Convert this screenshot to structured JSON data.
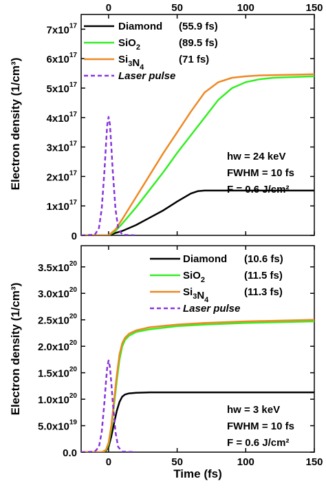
{
  "chart_data": [
    {
      "type": "line",
      "xlabel": "",
      "ylabel": "Electron density (1/cm³)",
      "xlim": [
        -20,
        150
      ],
      "ylim": [
        0,
        7.5e+17
      ],
      "x_ticks": [
        {
          "value": 0,
          "label": "0"
        },
        {
          "value": 50,
          "label": "50"
        },
        {
          "value": 100,
          "label": "100"
        },
        {
          "value": 150,
          "label": "150"
        }
      ],
      "x_ticks_position": "top",
      "y_ticks": [
        {
          "value": 0,
          "mantissa": "0",
          "exp": ""
        },
        {
          "value": 1e+17,
          "mantissa": "1x10",
          "exp": "17"
        },
        {
          "value": 2e+17,
          "mantissa": "2x10",
          "exp": "17"
        },
        {
          "value": 3e+17,
          "mantissa": "3x10",
          "exp": "17"
        },
        {
          "value": 4e+17,
          "mantissa": "4x10",
          "exp": "17"
        },
        {
          "value": 5e+17,
          "mantissa": "5x10",
          "exp": "17"
        },
        {
          "value": 6e+17,
          "mantissa": "6x10",
          "exp": "17"
        },
        {
          "value": 7e+17,
          "mantissa": "7x10",
          "exp": "17"
        }
      ],
      "legend": "top-left",
      "grid": false,
      "series": [
        {
          "name": "Diamond",
          "legend_time": "(55.9 fs)",
          "color": "#000000",
          "dash": false,
          "x": [
            -20,
            -5,
            0,
            5,
            10,
            20,
            30,
            40,
            50,
            60,
            65,
            70,
            80,
            100,
            150
          ],
          "y": [
            0,
            0,
            0,
            8000000000000000.0,
            1.5e+16,
            3.5e+16,
            6e+16,
            8.5e+16,
            1.15e+17,
            1.42e+17,
            1.5e+17,
            1.52e+17,
            1.52e+17,
            1.52e+17,
            1.52e+17
          ]
        },
        {
          "name": "SiO2",
          "legend_time": "(89.5 fs)",
          "color": "#33ee22",
          "dash": false,
          "x": [
            -20,
            -5,
            0,
            5,
            10,
            20,
            30,
            40,
            50,
            60,
            70,
            80,
            90,
            100,
            110,
            120,
            130,
            150
          ],
          "y": [
            0,
            0,
            0,
            1.5e+16,
            4e+16,
            9.5e+16,
            1.55e+17,
            2.15e+17,
            2.8e+17,
            3.4e+17,
            4e+17,
            4.6e+17,
            5e+17,
            5.2e+17,
            5.3e+17,
            5.35e+17,
            5.37e+17,
            5.4e+17
          ]
        },
        {
          "name": "Si3N4",
          "legend_time": "(71 fs)",
          "color": "#ee8822",
          "dash": false,
          "x": [
            -20,
            -5,
            0,
            5,
            10,
            20,
            30,
            40,
            50,
            60,
            70,
            80,
            90,
            100,
            110,
            130,
            150
          ],
          "y": [
            0,
            0,
            0,
            2e+16,
            5.5e+16,
            1.3e+17,
            2.05e+17,
            2.8e+17,
            3.5e+17,
            4.2e+17,
            4.85e+17,
            5.2e+17,
            5.35e+17,
            5.4e+17,
            5.43e+17,
            5.45e+17,
            5.47e+17
          ]
        },
        {
          "name": "Laser pulse",
          "legend_time": "",
          "color": "#8833dd",
          "dash": true,
          "x": [
            -20,
            -10,
            -7,
            -5,
            -3,
            -2,
            -1,
            0,
            1,
            2,
            3,
            5,
            7,
            10,
            20
          ],
          "y": [
            0,
            2000000000000000.0,
            2.5e+16,
            9e+16,
            2.2e+17,
            3e+17,
            3.75e+17,
            4.02e+17,
            3.75e+17,
            3e+17,
            2.2e+17,
            9e+16,
            2.5e+16,
            2000000000000000.0,
            0
          ]
        }
      ],
      "annotations": [
        "hw = 24 keV",
        "FWHM = 10 fs",
        "F = 0.6 J/cm²"
      ]
    },
    {
      "type": "line",
      "xlabel": "Time (fs)",
      "ylabel": "Electron density (1/cm³)",
      "xlim": [
        -20,
        150
      ],
      "ylim": [
        0,
        3.9e+20
      ],
      "x_ticks": [
        {
          "value": 0,
          "label": "0"
        },
        {
          "value": 50,
          "label": "50"
        },
        {
          "value": 100,
          "label": "100"
        },
        {
          "value": 150,
          "label": "150"
        }
      ],
      "x_ticks_position": "bottom",
      "y_ticks": [
        {
          "value": 0,
          "mantissa": "0.0",
          "exp": ""
        },
        {
          "value": 5e+19,
          "mantissa": "5.0x10",
          "exp": "19"
        },
        {
          "value": 1e+20,
          "mantissa": "1.0x10",
          "exp": "20"
        },
        {
          "value": 1.5e+20,
          "mantissa": "1.5x10",
          "exp": "20"
        },
        {
          "value": 2e+20,
          "mantissa": "2.0x10",
          "exp": "20"
        },
        {
          "value": 2.5e+20,
          "mantissa": "2.5x10",
          "exp": "20"
        },
        {
          "value": 3e+20,
          "mantissa": "3.0x10",
          "exp": "20"
        },
        {
          "value": 3.5e+20,
          "mantissa": "3.5x10",
          "exp": "20"
        }
      ],
      "legend": "top-right",
      "grid": false,
      "series": [
        {
          "name": "Diamond",
          "legend_time": "(10.6 fs)",
          "color": "#000000",
          "dash": false,
          "x": [
            -20,
            -5,
            -2,
            0,
            2,
            4,
            6,
            8,
            10,
            12,
            15,
            20,
            30,
            50,
            100,
            150
          ],
          "y": [
            0,
            0,
            2e+18,
            1e+19,
            3e+19,
            5.5e+19,
            7.8e+19,
            9.5e+19,
            1.05e+20,
            1.09e+20,
            1.11e+20,
            1.12e+20,
            1.13e+20,
            1.13e+20,
            1.13e+20,
            1.13e+20
          ]
        },
        {
          "name": "SiO2",
          "legend_time": "(11.5 fs)",
          "color": "#33ee22",
          "dash": false,
          "x": [
            -20,
            -5,
            -2,
            0,
            2,
            4,
            6,
            8,
            10,
            12,
            15,
            20,
            30,
            50,
            70,
            100,
            150
          ],
          "y": [
            0,
            0,
            3e+18,
            1.5e+19,
            4.5e+19,
            9e+19,
            1.35e+20,
            1.75e+20,
            2e+20,
            2.12e+20,
            2.2e+20,
            2.27e+20,
            2.32e+20,
            2.38e+20,
            2.41e+20,
            2.44e+20,
            2.47e+20
          ]
        },
        {
          "name": "Si3N4",
          "legend_time": "(11.3 fs)",
          "color": "#ee8822",
          "dash": false,
          "x": [
            -20,
            -5,
            -2,
            0,
            2,
            4,
            6,
            8,
            10,
            12,
            15,
            20,
            30,
            50,
            70,
            100,
            150
          ],
          "y": [
            0,
            0,
            4e+18,
            1.8e+19,
            5e+19,
            9.8e+19,
            1.45e+20,
            1.85e+20,
            2.06e+20,
            2.16e+20,
            2.24e+20,
            2.3e+20,
            2.36e+20,
            2.41e+20,
            2.44e+20,
            2.47e+20,
            2.5e+20
          ]
        },
        {
          "name": "Laser pulse",
          "legend_time": "",
          "color": "#8833dd",
          "dash": true,
          "x": [
            -20,
            -10,
            -7,
            -5,
            -3,
            -2,
            -1,
            0,
            1,
            2,
            3,
            5,
            7,
            10,
            20
          ],
          "y": [
            0,
            1e+18,
            1e+19,
            3.8e+19,
            9.5e+19,
            1.3e+20,
            1.6e+20,
            1.73e+20,
            1.6e+20,
            1.3e+20,
            9.5e+19,
            3.8e+19,
            1e+19,
            1e+18,
            0
          ]
        }
      ],
      "annotations": [
        "hw = 3 keV",
        "FWHM = 10 fs",
        "F = 0.6 J/cm²"
      ]
    }
  ]
}
